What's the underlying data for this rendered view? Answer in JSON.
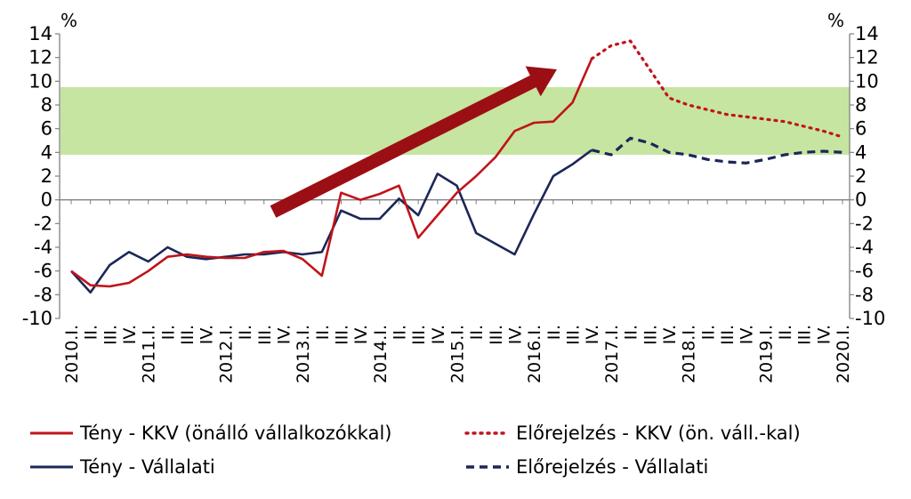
{
  "chart_data": {
    "type": "line",
    "y_unit_left": "%",
    "y_unit_right": "%",
    "ylim": [
      -10,
      14
    ],
    "yticks": [
      "14",
      "12",
      "10",
      "8",
      "6",
      "4",
      "2",
      "0",
      "-2",
      "-4",
      "-6",
      "-8",
      "-10"
    ],
    "target_band": {
      "from": 3.8,
      "to": 9.5,
      "color": "#c6e5a0"
    },
    "quarters": [
      "2010.I.",
      "II.",
      "III.",
      "IV.",
      "2011.I.",
      "II.",
      "III.",
      "IV.",
      "2012.I.",
      "II.",
      "III.",
      "IV.",
      "2013.I.",
      "II.",
      "III.",
      "IV.",
      "2014.I.",
      "II.",
      "III.",
      "IV.",
      "2015.I.",
      "II.",
      "III.",
      "IV.",
      "2016.I.",
      "II.",
      "III.",
      "IV.",
      "2017.I.",
      "II.",
      "III.",
      "IV.",
      "2018.I.",
      "II.",
      "III.",
      "IV.",
      "2019.I.",
      "II.",
      "III.",
      "IV.",
      "2020.I."
    ],
    "series": [
      {
        "name": "Tény - KKV (önálló vállalkozókkal)",
        "color": "#c0141b",
        "style": "solid",
        "start_index": 0,
        "values": [
          -6.0,
          -7.2,
          -7.3,
          -7.0,
          -6.0,
          -4.8,
          -4.6,
          -4.8,
          -4.9,
          -4.9,
          -4.4,
          -4.3,
          -5.0,
          -6.4,
          0.6,
          0.0,
          0.5,
          1.2,
          -3.2,
          -1.3,
          0.6,
          2.0,
          3.6,
          5.8,
          6.5,
          6.6,
          8.2,
          11.9
        ]
      },
      {
        "name": "Előrejelzés - KKV (ön. váll.-kal)",
        "color": "#c0141b",
        "style": "dotted",
        "start_index": 27,
        "values": [
          11.9,
          13.0,
          13.4,
          11.0,
          8.6,
          8.0,
          7.6,
          7.2,
          7.0,
          6.8,
          6.6,
          6.2,
          5.8,
          5.3
        ]
      },
      {
        "name": "Tény - Vállalati",
        "color": "#1c2757",
        "style": "solid",
        "start_index": 0,
        "values": [
          -6.0,
          -7.8,
          -5.5,
          -4.4,
          -5.2,
          -4.0,
          -4.8,
          -5.0,
          -4.8,
          -4.6,
          -4.6,
          -4.4,
          -4.6,
          -4.4,
          -0.9,
          -1.6,
          -1.6,
          0.1,
          -1.3,
          2.2,
          1.2,
          -2.8,
          -3.7,
          -4.6,
          -1.2,
          2.0,
          3.0,
          4.2
        ]
      },
      {
        "name": "Előrejelzés - Vállalati",
        "color": "#1c2757",
        "style": "dashed",
        "start_index": 27,
        "values": [
          4.2,
          3.8,
          5.2,
          4.8,
          4.0,
          3.8,
          3.4,
          3.2,
          3.1,
          3.4,
          3.8,
          4.0,
          4.1,
          4.0
        ]
      }
    ],
    "legend": {
      "placement": "bottom",
      "items": [
        {
          "label": "Tény - KKV (önálló vállalkozókkal)",
          "color": "#c0141b",
          "style": "solid"
        },
        {
          "label": "Előrejelzés - KKV (ön. váll.-kal)",
          "color": "#c0141b",
          "style": "dotted"
        },
        {
          "label": "Tény - Vállalati",
          "color": "#1c2757",
          "style": "solid"
        },
        {
          "label": "Előrejelzés - Vállalati",
          "color": "#1c2757",
          "style": "dashed"
        }
      ]
    },
    "arrow_color": "#9b0f14"
  }
}
